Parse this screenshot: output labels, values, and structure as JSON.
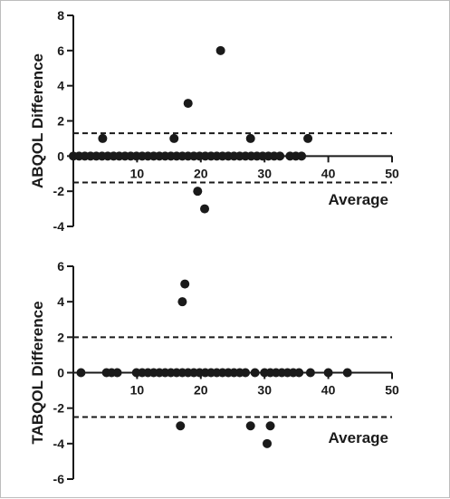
{
  "chart_data": [
    {
      "type": "scatter",
      "title": "",
      "ylabel": "ABQOL Difference",
      "xlabel": "Average",
      "xlim": [
        0,
        50
      ],
      "ylim": [
        -4,
        8
      ],
      "xticks": [
        10,
        20,
        30,
        40,
        50
      ],
      "yticks": [
        -4,
        -2,
        0,
        2,
        4,
        6,
        8
      ],
      "xtick_labels": [
        "10",
        "20",
        "30",
        "40",
        "50"
      ],
      "ytick_labels": [
        "-4",
        "-2",
        "0",
        "2",
        "4",
        "6",
        "8"
      ],
      "reference_lines": [
        1.3,
        -1.5
      ],
      "grid": false,
      "points": [
        {
          "x": 0,
          "y": 0
        },
        {
          "x": 0.9,
          "y": 0
        },
        {
          "x": 1.8,
          "y": 0
        },
        {
          "x": 2.7,
          "y": 0
        },
        {
          "x": 3.6,
          "y": 0
        },
        {
          "x": 4.5,
          "y": 0
        },
        {
          "x": 5.4,
          "y": 0
        },
        {
          "x": 6.3,
          "y": 0
        },
        {
          "x": 7.2,
          "y": 0
        },
        {
          "x": 8.1,
          "y": 0
        },
        {
          "x": 9.0,
          "y": 0
        },
        {
          "x": 9.9,
          "y": 0
        },
        {
          "x": 10.8,
          "y": 0
        },
        {
          "x": 11.7,
          "y": 0
        },
        {
          "x": 12.6,
          "y": 0
        },
        {
          "x": 13.5,
          "y": 0
        },
        {
          "x": 14.4,
          "y": 0
        },
        {
          "x": 15.3,
          "y": 0
        },
        {
          "x": 16.2,
          "y": 0
        },
        {
          "x": 17.1,
          "y": 0
        },
        {
          "x": 18.0,
          "y": 0
        },
        {
          "x": 18.9,
          "y": 0
        },
        {
          "x": 19.8,
          "y": 0
        },
        {
          "x": 20.7,
          "y": 0
        },
        {
          "x": 21.6,
          "y": 0
        },
        {
          "x": 22.5,
          "y": 0
        },
        {
          "x": 23.4,
          "y": 0
        },
        {
          "x": 24.3,
          "y": 0
        },
        {
          "x": 25.2,
          "y": 0
        },
        {
          "x": 26.1,
          "y": 0
        },
        {
          "x": 27.0,
          "y": 0
        },
        {
          "x": 27.9,
          "y": 0
        },
        {
          "x": 28.8,
          "y": 0
        },
        {
          "x": 29.7,
          "y": 0
        },
        {
          "x": 30.6,
          "y": 0
        },
        {
          "x": 31.5,
          "y": 0
        },
        {
          "x": 32.4,
          "y": 0
        },
        {
          "x": 34.0,
          "y": 0
        },
        {
          "x": 34.9,
          "y": 0
        },
        {
          "x": 35.8,
          "y": 0
        },
        {
          "x": 4.6,
          "y": 1
        },
        {
          "x": 15.8,
          "y": 1
        },
        {
          "x": 27.8,
          "y": 1
        },
        {
          "x": 36.8,
          "y": 1
        },
        {
          "x": 18.0,
          "y": 3
        },
        {
          "x": 23.1,
          "y": 6
        },
        {
          "x": 19.5,
          "y": -2
        },
        {
          "x": 20.6,
          "y": -3
        }
      ]
    },
    {
      "type": "scatter",
      "title": "",
      "ylabel": "TABQOL Difference",
      "xlabel": "Average",
      "xlim": [
        0,
        50
      ],
      "ylim": [
        -6,
        6
      ],
      "xticks": [
        10,
        20,
        30,
        40,
        50
      ],
      "yticks": [
        -6,
        -4,
        -2,
        0,
        2,
        4,
        6
      ],
      "xtick_labels": [
        "10",
        "20",
        "30",
        "40",
        "50"
      ],
      "ytick_labels": [
        "-6",
        "-4",
        "-2",
        "0",
        "2",
        "4",
        "6"
      ],
      "reference_lines": [
        2,
        -2.5
      ],
      "grid": false,
      "points": [
        {
          "x": 1.2,
          "y": 0
        },
        {
          "x": 5.2,
          "y": 0
        },
        {
          "x": 6.0,
          "y": 0
        },
        {
          "x": 6.9,
          "y": 0
        },
        {
          "x": 9.9,
          "y": 0
        },
        {
          "x": 10.8,
          "y": 0
        },
        {
          "x": 11.7,
          "y": 0
        },
        {
          "x": 12.6,
          "y": 0
        },
        {
          "x": 13.5,
          "y": 0
        },
        {
          "x": 14.4,
          "y": 0
        },
        {
          "x": 15.3,
          "y": 0
        },
        {
          "x": 16.2,
          "y": 0
        },
        {
          "x": 17.1,
          "y": 0
        },
        {
          "x": 18.0,
          "y": 0
        },
        {
          "x": 18.9,
          "y": 0
        },
        {
          "x": 19.8,
          "y": 0
        },
        {
          "x": 20.7,
          "y": 0
        },
        {
          "x": 21.6,
          "y": 0
        },
        {
          "x": 22.5,
          "y": 0
        },
        {
          "x": 23.4,
          "y": 0
        },
        {
          "x": 24.3,
          "y": 0
        },
        {
          "x": 25.2,
          "y": 0
        },
        {
          "x": 26.1,
          "y": 0
        },
        {
          "x": 27.0,
          "y": 0
        },
        {
          "x": 28.5,
          "y": 0
        },
        {
          "x": 30.0,
          "y": 0
        },
        {
          "x": 30.9,
          "y": 0
        },
        {
          "x": 31.8,
          "y": 0
        },
        {
          "x": 32.7,
          "y": 0
        },
        {
          "x": 33.6,
          "y": 0
        },
        {
          "x": 34.5,
          "y": 0
        },
        {
          "x": 35.4,
          "y": 0
        },
        {
          "x": 37.2,
          "y": 0
        },
        {
          "x": 40.0,
          "y": 0
        },
        {
          "x": 43.0,
          "y": 0
        },
        {
          "x": 17.5,
          "y": 5
        },
        {
          "x": 17.1,
          "y": 4
        },
        {
          "x": 16.8,
          "y": -3
        },
        {
          "x": 27.8,
          "y": -3
        },
        {
          "x": 30.9,
          "y": -3
        },
        {
          "x": 30.4,
          "y": -4
        }
      ]
    }
  ]
}
